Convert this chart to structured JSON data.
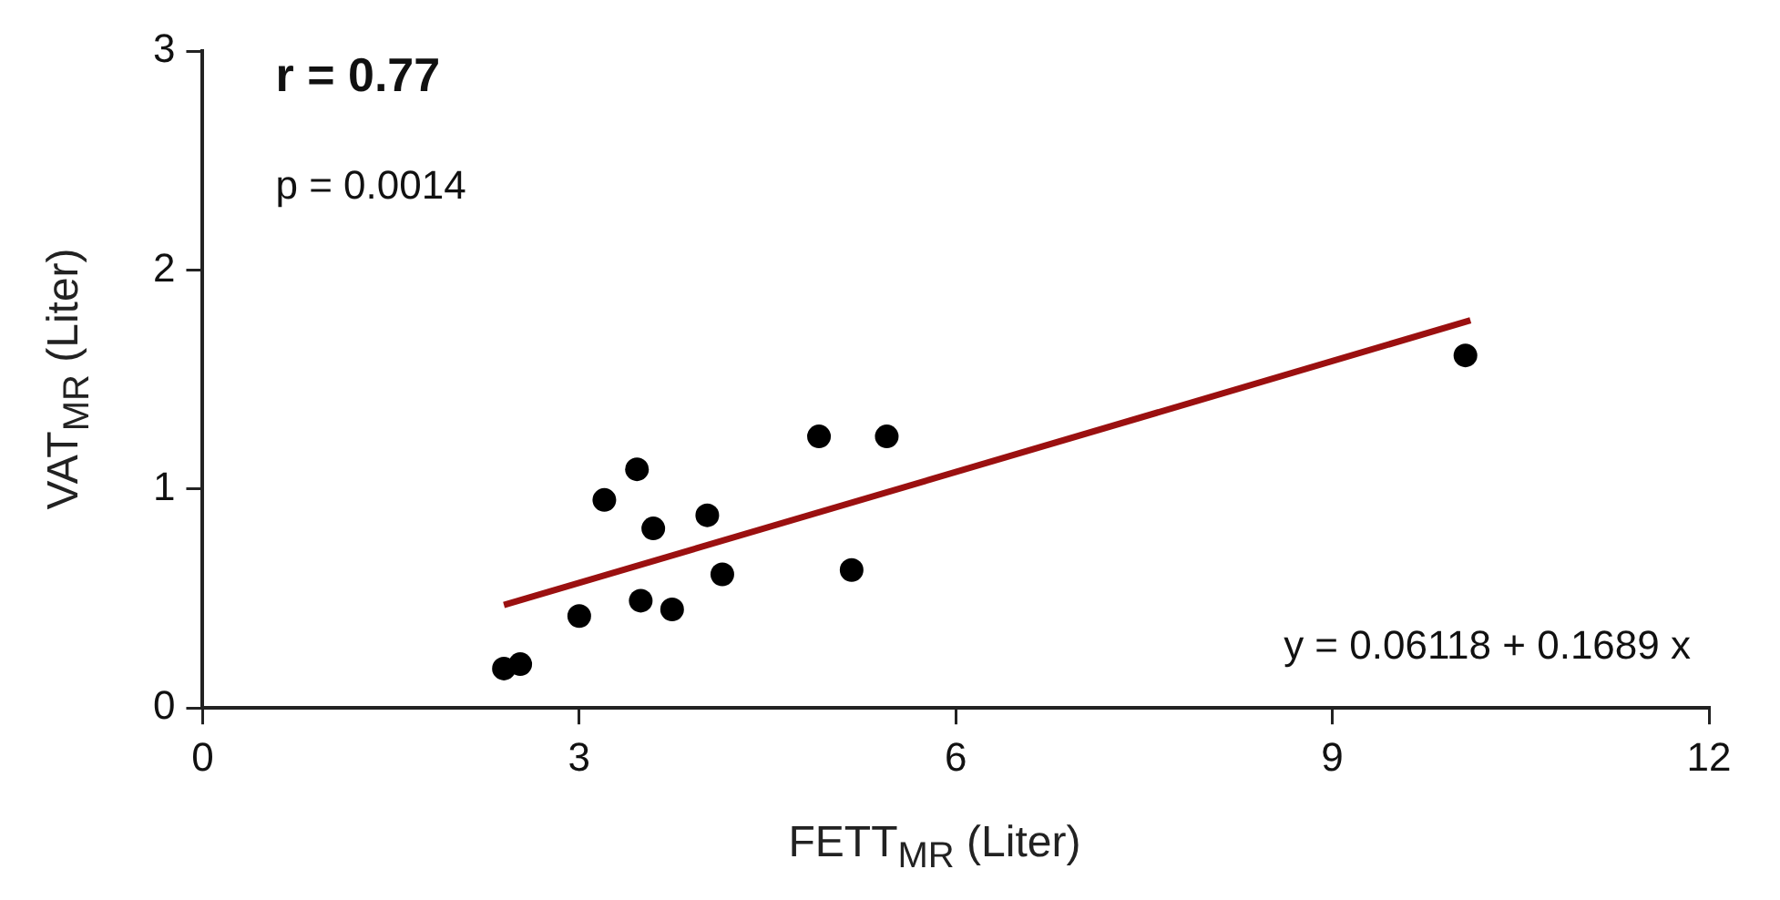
{
  "chart_data": {
    "type": "scatter",
    "xlabel": "FETT$_{MR}$ (Liter)",
    "ylabel": "VAT$_{MR}$ (Liter)",
    "annotations": [
      "r = 0.77",
      "p = 0.0014",
      "y = 0.06118 + 0.1689 x"
    ],
    "series": [
      {
        "color": "#000000",
        "marker": "circle",
        "x": [
          2.4,
          2.53,
          3.0,
          3.2,
          3.46,
          3.49,
          3.59,
          3.74,
          4.02,
          4.14,
          4.91,
          5.17,
          5.45,
          10.06
        ],
        "values": [
          0.18,
          0.2,
          0.42,
          0.95,
          1.09,
          0.49,
          0.82,
          0.45,
          0.88,
          0.61,
          1.24,
          0.63,
          1.24,
          1.61
        ]
      },
      {
        "type": "line",
        "marker": "none",
        "color": "#9b1010",
        "x": [
          2.4,
          10.1
        ],
        "values": [
          0.47,
          1.77
        ]
      }
    ],
    "xlim": [
      0,
      12
    ],
    "xticks": [
      0,
      3,
      6,
      9,
      12
    ],
    "ylim": [
      0,
      3
    ],
    "yticks": [
      0,
      1,
      2,
      3
    ],
    "grid": false,
    "legend": false,
    "line_style": "solid"
  }
}
